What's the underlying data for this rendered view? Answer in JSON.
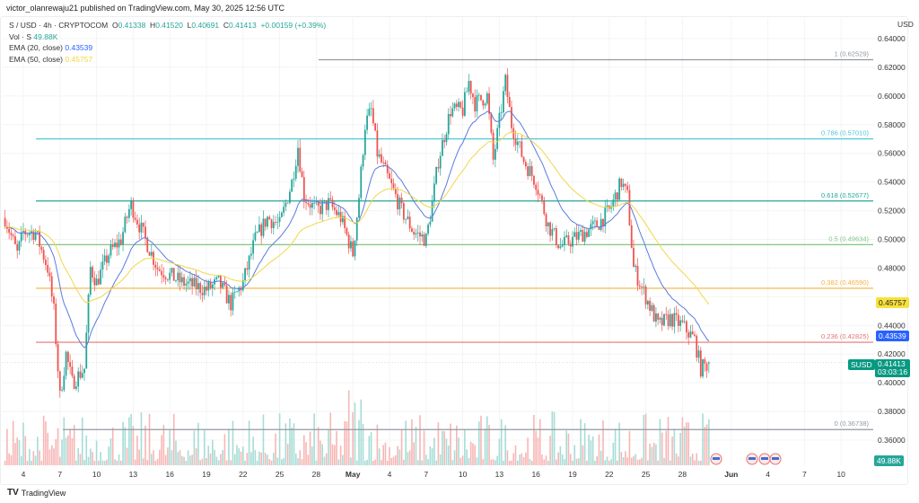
{
  "publisher_line": "victor_olanrewaju21 published on TradingView.com, May 30, 2025 12:56 UTC",
  "legend": {
    "symbol": "S / USD · 4h · CRYPTOCOM",
    "o_label": "O",
    "o": "0.41338",
    "h_label": "H",
    "h": "0.41520",
    "l_label": "L",
    "l": "0.40691",
    "c_label": "C",
    "c": "0.41413",
    "change": "+0.00159 (+0.39%)",
    "vol_label": "Vol · S",
    "vol": "49.88K",
    "ema20_label": "EMA (20, close)",
    "ema20": "0.43539",
    "ema50_label": "EMA (50, close)",
    "ema50": "0.45757"
  },
  "axis": {
    "currency": "USD",
    "price_ticks": [
      "0.64000",
      "0.62000",
      "0.60000",
      "0.58000",
      "0.56000",
      "0.54000",
      "0.52000",
      "0.50000",
      "0.48000",
      "0.44000",
      "0.42000",
      "0.40000",
      "0.38000",
      "0.36000"
    ],
    "date_ticks": [
      {
        "label": "4",
        "t": 4
      },
      {
        "label": "7",
        "t": 7
      },
      {
        "label": "10",
        "t": 10
      },
      {
        "label": "13",
        "t": 13
      },
      {
        "label": "16",
        "t": 16
      },
      {
        "label": "19",
        "t": 19
      },
      {
        "label": "22",
        "t": 22
      },
      {
        "label": "25",
        "t": 25
      },
      {
        "label": "28",
        "t": 28
      },
      {
        "label": "May",
        "t": 31,
        "bold": true
      },
      {
        "label": "4",
        "t": 34
      },
      {
        "label": "7",
        "t": 37
      },
      {
        "label": "10",
        "t": 40
      },
      {
        "label": "13",
        "t": 43
      },
      {
        "label": "16",
        "t": 46
      },
      {
        "label": "19",
        "t": 49
      },
      {
        "label": "22",
        "t": 52
      },
      {
        "label": "25",
        "t": 55
      },
      {
        "label": "28",
        "t": 58
      },
      {
        "label": "Jun",
        "t": 62,
        "bold": true
      },
      {
        "label": "4",
        "t": 65
      },
      {
        "label": "7",
        "t": 68
      },
      {
        "label": "10",
        "t": 71
      }
    ]
  },
  "fib_levels": [
    {
      "label": "1 (0.62529)",
      "price": 0.62529,
      "color": "#9598a1"
    },
    {
      "label": "0.786 (0.57010)",
      "price": 0.5701,
      "color": "#4dc9d6"
    },
    {
      "label": "0.618 (0.52677)",
      "price": 0.52677,
      "color": "#26a69a"
    },
    {
      "label": "0.5 (0.49634)",
      "price": 0.49634,
      "color": "#81c784"
    },
    {
      "label": "0.382 (0.46590)",
      "price": 0.4659,
      "color": "#f5b041"
    },
    {
      "label": "0.236 (0.42825)",
      "price": 0.42825,
      "color": "#e57373"
    },
    {
      "label": "0 (0.36738)",
      "price": 0.36738,
      "color": "#9598a1"
    }
  ],
  "price_tags": {
    "ema50": {
      "value": "0.45757",
      "color": "#f7e13c"
    },
    "ema20": {
      "value": "0.43539",
      "color": "#2962ff"
    },
    "last": {
      "symbol": "SUSD",
      "value": "0.41413",
      "countdown": "03:03:16",
      "color": "#089981"
    },
    "volume": {
      "value": "49.88K",
      "color": "#26a69a"
    }
  },
  "colors": {
    "up": "#26a69a",
    "down": "#ef5350",
    "ema20": "#5b7be0",
    "ema50": "#f2d64b"
  },
  "brand": "TradingView",
  "chart_data": {
    "type": "candlestick",
    "title": "S / USD · 4h · CRYPTOCOM",
    "ylabel": "USD",
    "ylim": [
      0.35,
      0.645
    ],
    "x_unit": "day (Apr 1 = 1, May 1 = 31)",
    "close_path": [
      [
        2.5,
        0.515
      ],
      [
        3.5,
        0.49
      ],
      [
        4,
        0.505
      ],
      [
        5,
        0.505
      ],
      [
        6,
        0.48
      ],
      [
        6.5,
        0.45
      ],
      [
        7,
        0.39
      ],
      [
        7.5,
        0.42
      ],
      [
        8,
        0.4
      ],
      [
        9,
        0.41
      ],
      [
        9.5,
        0.48
      ],
      [
        10,
        0.47
      ],
      [
        11,
        0.49
      ],
      [
        12,
        0.5
      ],
      [
        12.8,
        0.525
      ],
      [
        13.5,
        0.51
      ],
      [
        14,
        0.5
      ],
      [
        15,
        0.48
      ],
      [
        16,
        0.475
      ],
      [
        17,
        0.47
      ],
      [
        19,
        0.465
      ],
      [
        20,
        0.47
      ],
      [
        21,
        0.455
      ],
      [
        22,
        0.47
      ],
      [
        23,
        0.5
      ],
      [
        24,
        0.515
      ],
      [
        25,
        0.51
      ],
      [
        26,
        0.54
      ],
      [
        26.5,
        0.565
      ],
      [
        27,
        0.53
      ],
      [
        28,
        0.52
      ],
      [
        29,
        0.525
      ],
      [
        30,
        0.515
      ],
      [
        31,
        0.49
      ],
      [
        31.5,
        0.53
      ],
      [
        32,
        0.58
      ],
      [
        32.5,
        0.59
      ],
      [
        33,
        0.56
      ],
      [
        34,
        0.54
      ],
      [
        35,
        0.52
      ],
      [
        36,
        0.505
      ],
      [
        37,
        0.5
      ],
      [
        37.5,
        0.525
      ],
      [
        38,
        0.555
      ],
      [
        39,
        0.59
      ],
      [
        40,
        0.59
      ],
      [
        40.5,
        0.61
      ],
      [
        41,
        0.595
      ],
      [
        42,
        0.6
      ],
      [
        42.5,
        0.555
      ],
      [
        43.5,
        0.61
      ],
      [
        44,
        0.58
      ],
      [
        45,
        0.555
      ],
      [
        46,
        0.54
      ],
      [
        47,
        0.51
      ],
      [
        48,
        0.495
      ],
      [
        49,
        0.5
      ],
      [
        50,
        0.505
      ],
      [
        51,
        0.51
      ],
      [
        52,
        0.52
      ],
      [
        53,
        0.54
      ],
      [
        53.5,
        0.53
      ],
      [
        54,
        0.48
      ],
      [
        55,
        0.46
      ],
      [
        56,
        0.44
      ],
      [
        57,
        0.445
      ],
      [
        58,
        0.44
      ],
      [
        59,
        0.43
      ],
      [
        59.5,
        0.41
      ],
      [
        60.3,
        0.414
      ]
    ]
  }
}
